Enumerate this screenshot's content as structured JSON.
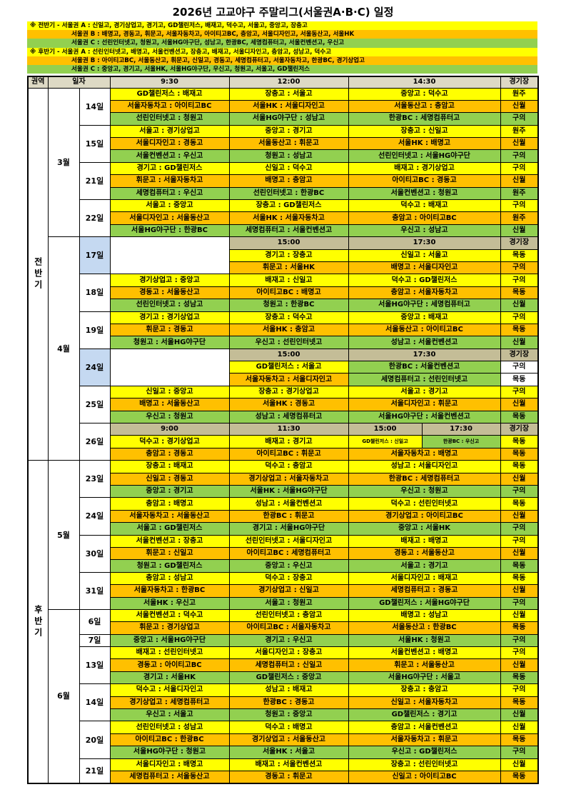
{
  "title": "2026년 고교야구 주말리그(서울권A·B·C) 일정",
  "notes": [
    {
      "text": "※ 전반기 - 서울권 A : 신일고, 경기상업고, 경기고, GD챌린저스, 배재고, 덕수고, 서울고, 중앙고, 장충고",
      "color": "#ffff00"
    },
    {
      "text": "서울권 B : 배명고, 경동고, 휘문고, 서울자동차고, 아이티고BC, 충암고, 서울디자인고, 서울동산고, 서울HK",
      "color": "#ffc000"
    },
    {
      "text": "서울권 C : 선린인터넷고, 청원고, 서울HG야구단, 성남고, 한광BC, 세명컴퓨터고, 서울컨벤션고, 우신고",
      "color": "#92d050"
    },
    {
      "text": "※ 후반기 - 서울권 A : 선린인터넷고, 배명고, 서울컨벤션고, 장충고, 배재고, 서울디자인고, 충암고, 성남고, 덕수고",
      "color": "#ffff00"
    },
    {
      "text": "서울권 B : 아이티고BC, 서울동산고, 휘문고, 신일고, 경동고, 세명컴퓨터고, 서울자동차고, 한광BC, 경기상업고",
      "color": "#ffc000"
    },
    {
      "text": "서울권 C : 중앙고, 경기고, 서울HK, 서울HG야구단, 우신고, 청원고, 서울고, GD챌린저스",
      "color": "#92d050"
    }
  ],
  "table": {
    "header": [
      "권역",
      "일자",
      "9:30",
      "12:00",
      "14:30",
      "경기장"
    ],
    "halves": [
      {
        "label": "전반기",
        "months": [
          {
            "label": "3월",
            "days": [
              {
                "label": "14일",
                "rows": [
                  {
                    "color": "#ffff00",
                    "games": [
                      "GD챌린저스 : 배재고",
                      "장충고 : 서울고",
                      "중앙고 : 덕수고"
                    ],
                    "venue": "원주"
                  },
                  {
                    "color": "#ffc000",
                    "games": [
                      "서울자동차고 : 아이티고BC",
                      "서울HK : 서울디자인고",
                      "서울동산고 : 충암고"
                    ],
                    "venue": "신월"
                  },
                  {
                    "color": "#92d050",
                    "games": [
                      "선린인터넷고 : 청원고",
                      "서울HG야구단 : 성남고",
                      "한광BC : 세명컴퓨터고"
                    ],
                    "venue": "구의"
                  }
                ]
              },
              {
                "label": "15일",
                "rows": [
                  {
                    "color": "#ffff00",
                    "games": [
                      "서울고 : 경기상업고",
                      "중앙고 : 경기고",
                      "장충고 : 신일고"
                    ],
                    "venue": "원주"
                  },
                  {
                    "color": "#ffc000",
                    "games": [
                      "서울디자인고 : 경동고",
                      "서울동산고 : 휘문고",
                      "서울HK : 배명고"
                    ],
                    "venue": "신월"
                  },
                  {
                    "color": "#92d050",
                    "games": [
                      "서울컨벤션고 : 우신고",
                      "청원고 : 성남고",
                      "선린인터넷고 : 서울HG야구단"
                    ],
                    "venue": "구의"
                  }
                ]
              },
              {
                "label": "21일",
                "rows": [
                  {
                    "color": "#ffff00",
                    "games": [
                      "경기고 : GD챌린저스",
                      "신일고 : 덕수고",
                      "배재고 : 경기상업고"
                    ],
                    "venue": "구의"
                  },
                  {
                    "color": "#ffc000",
                    "games": [
                      "휘문고 : 서울자동차고",
                      "배명고 : 충암고",
                      "아이티고BC : 경동고"
                    ],
                    "venue": "신월"
                  },
                  {
                    "color": "#92d050",
                    "games": [
                      "세명컴퓨터고 : 우신고",
                      "선린인터넷고 : 한광BC",
                      "서울컨벤션고 : 청원고"
                    ],
                    "venue": "원주"
                  }
                ]
              },
              {
                "label": "22일",
                "rows": [
                  {
                    "color": "#ffff00",
                    "games": [
                      "서울고 : 중앙고",
                      "장충고 : GD챌린저스",
                      "덕수고 : 배재고"
                    ],
                    "venue": "구의"
                  },
                  {
                    "color": "#ffc000",
                    "games": [
                      "서울디자인고 : 서울동산고",
                      "서울HK : 서울자동차고",
                      "충암고 : 아이티고BC"
                    ],
                    "venue": "원주"
                  },
                  {
                    "color": "#92d050",
                    "games": [
                      "서울HG야구단 : 한광BC",
                      "세명컴퓨터고 : 서울컨벤션고",
                      "우신고 : 성남고"
                    ],
                    "venue": "신월"
                  }
                ]
              }
            ]
          },
          {
            "label": "4월",
            "days": [
              {
                "label": "17일",
                "day_color": "#c5d9f1",
                "subheader": [
                  "15:00",
                  "17:30",
                  "경기장"
                ],
                "rows": [
                  {
                    "color": "#ffff00",
                    "games": [
                      "경기고 : 장충고",
                      "신일고 : 서울고"
                    ],
                    "venue": "목동"
                  },
                  {
                    "color": "#ffc000",
                    "games": [
                      "휘문고 : 서울HK",
                      "배명고 : 서울디자인고"
                    ],
                    "venue": "구의"
                  }
                ]
              },
              {
                "label": "18일",
                "rows": [
                  {
                    "color": "#ffff00",
                    "games": [
                      "경기상업고 : 중앙고",
                      "배재고 : 신일고",
                      "덕수고 : GD챌린저스"
                    ],
                    "venue": "구의"
                  },
                  {
                    "color": "#ffc000",
                    "games": [
                      "경동고 : 서울동산고",
                      "아이티고BC : 배명고",
                      "충암고 : 서울자동차고"
                    ],
                    "venue": "목동"
                  },
                  {
                    "color": "#92d050",
                    "games": [
                      "선린인터넷고 : 성남고",
                      "청원고 : 한광BC",
                      "서울HG야구단 : 세명컴퓨터고"
                    ],
                    "venue": "신월"
                  }
                ]
              },
              {
                "label": "19일",
                "rows": [
                  {
                    "color": "#ffff00",
                    "games": [
                      "경기고 : 경기상업고",
                      "장충고 : 덕수고",
                      "중앙고 : 배재고"
                    ],
                    "venue": "구의"
                  },
                  {
                    "color": "#ffc000",
                    "games": [
                      "휘문고 : 경동고",
                      "서울HK : 충암고",
                      "서울동산고 : 아이티고BC"
                    ],
                    "venue": "목동"
                  },
                  {
                    "color": "#92d050",
                    "games": [
                      "청원고 : 서울HG야구단",
                      "우신고 : 선린인터넷고",
                      "성남고 : 서울컨벤션고"
                    ],
                    "venue": "신월"
                  }
                ]
              },
              {
                "label": "24일",
                "day_color": "#c5d9f1",
                "subheader": [
                  "15:00",
                  "17:30",
                  "경기장"
                ],
                "rows": [
                  {
                    "color": "#ffffff",
                    "games": [
                      {
                        "text": "GD챌린저스 : 서울고",
                        "color": "#ffff00"
                      },
                      {
                        "text": "한광BC : 서울컨벤션고",
                        "color": "#92d050"
                      }
                    ],
                    "venue": "구의"
                  },
                  {
                    "color": "#ffffff",
                    "games": [
                      {
                        "text": "서울자동차고 : 서울디자인고",
                        "color": "#ffc000"
                      },
                      {
                        "text": "세명컴퓨터고 : 선린인터넷고",
                        "color": "#92d050"
                      }
                    ],
                    "venue": "목동"
                  }
                ]
              },
              {
                "label": "25일",
                "rows": [
                  {
                    "color": "#ffff00",
                    "games": [
                      "신일고 : 중앙고",
                      "장충고 : 경기상업고",
                      "서울고 : 경기고"
                    ],
                    "venue": "구의"
                  },
                  {
                    "color": "#ffc000",
                    "games": [
                      "배명고 : 서울동산고",
                      "서울HK : 경동고",
                      "서울디자인고 : 휘문고"
                    ],
                    "venue": "신월"
                  },
                  {
                    "color": "#92d050",
                    "games": [
                      "우신고 : 청원고",
                      "성남고 : 세명컴퓨터고",
                      "서울HG야구단 : 서울컨벤션고"
                    ],
                    "venue": "목동"
                  }
                ]
              },
              {
                "label": "26일",
                "subheader": [
                  "9:00",
                  "11:30",
                  "15:00",
                  "17:30",
                  "경기장"
                ],
                "rows": [
                  {
                    "color": "#ffff00",
                    "games": [
                      "덕수고 : 경기상업고",
                      "배재고 : 경기고",
                      "GD챌린저스 : 신일고",
                      {
                        "text": "한광BC : 우신고",
                        "color": "#92d050"
                      }
                    ],
                    "venue": "목동"
                  },
                  {
                    "color": "#ffc000",
                    "games": [
                      "충암고 : 경동고",
                      "아이티고BC : 휘문고",
                      "서울자동차고 : 배명고"
                    ],
                    "venue": "목동"
                  }
                ]
              }
            ]
          }
        ]
      },
      {
        "label": "후반기",
        "months": [
          {
            "label": "5월",
            "days": [
              {
                "label": "23일",
                "rows": [
                  {
                    "color": "#ffff00",
                    "games": [
                      "장충고 : 배재고",
                      "덕수고 : 충암고",
                      "성남고 : 서울디자인고"
                    ],
                    "venue": "목동"
                  },
                  {
                    "color": "#ffc000",
                    "games": [
                      "신일고 : 경동고",
                      "경기상업고 : 서울자동차고",
                      "한광BC : 세명컴퓨터고"
                    ],
                    "venue": "신월"
                  },
                  {
                    "color": "#92d050",
                    "games": [
                      "중앙고 : 경기고",
                      "서울HK : 서울HG야구단",
                      "우신고 : 청원고"
                    ],
                    "venue": "구의"
                  }
                ]
              },
              {
                "label": "24일",
                "rows": [
                  {
                    "color": "#ffff00",
                    "games": [
                      "충암고 : 배명고",
                      "성남고 : 서울컨벤션고",
                      "덕수고 : 선린인터넷고"
                    ],
                    "venue": "목동"
                  },
                  {
                    "color": "#ffc000",
                    "games": [
                      "서울자동차고 : 서울동산고",
                      "한광BC : 휘문고",
                      "경기상업고 : 아이티고BC"
                    ],
                    "venue": "신월"
                  },
                  {
                    "color": "#92d050",
                    "games": [
                      "서울고 : GD챌린저스",
                      "경기고 : 서울HG야구단",
                      "중앙고 : 서울HK"
                    ],
                    "venue": "구의"
                  }
                ]
              },
              {
                "label": "30일",
                "rows": [
                  {
                    "color": "#ffff00",
                    "games": [
                      "서울컨벤션고 : 장충고",
                      "선린인터넷고 : 서울디자인고",
                      "배재고 : 배명고"
                    ],
                    "venue": "구의"
                  },
                  {
                    "color": "#ffc000",
                    "games": [
                      "휘문고 : 신일고",
                      "아이티고BC : 세명컴퓨터고",
                      "경동고 : 서울동산고"
                    ],
                    "venue": "신월"
                  },
                  {
                    "color": "#92d050",
                    "games": [
                      "청원고 : GD챌린저스",
                      "중앙고 : 우신고",
                      "서울고 : 경기고"
                    ],
                    "venue": "목동"
                  }
                ]
              },
              {
                "label": "31일",
                "rows": [
                  {
                    "color": "#ffff00",
                    "games": [
                      "충암고 : 성남고",
                      "덕수고 : 장충고",
                      "서울디자인고 : 배재고"
                    ],
                    "venue": "목동"
                  },
                  {
                    "color": "#ffc000",
                    "games": [
                      "서울자동차고 : 한광BC",
                      "경기상업고 : 신일고",
                      "세명컴퓨터고 : 경동고"
                    ],
                    "venue": "신월"
                  },
                  {
                    "color": "#92d050",
                    "games": [
                      "서울HK : 우신고",
                      "서울고 : 청원고",
                      "GD챌린저스 : 서울HG야구단"
                    ],
                    "venue": "구의"
                  }
                ]
              }
            ]
          },
          {
            "label": "6월",
            "days": [
              {
                "label": "6일",
                "rows": [
                  {
                    "color": "#ffff00",
                    "games": [
                      "서울컨벤션고 : 덕수고",
                      "선린인터넷고 : 충암고",
                      "배명고 : 성남고"
                    ],
                    "venue": "신월"
                  },
                  {
                    "color": "#ffc000",
                    "games": [
                      "휘문고 : 경기상업고",
                      "아이티고BC : 서울자동차고",
                      "서울동산고 : 한광BC"
                    ],
                    "venue": "목동"
                  }
                ]
              },
              {
                "label": "7일",
                "rows": [
                  {
                    "color": "#92d050",
                    "games": [
                      "중앙고 : 서울HG야구단",
                      "경기고 : 우신고",
                      "서울HK : 청원고"
                    ],
                    "venue": "구의"
                  }
                ]
              },
              {
                "label": "13일",
                "rows": [
                  {
                    "color": "#ffff00",
                    "games": [
                      "배재고 : 선린인터넷고",
                      "서울디자인고 : 장충고",
                      "서울컨벤션고 : 배명고"
                    ],
                    "venue": "구의"
                  },
                  {
                    "color": "#ffc000",
                    "games": [
                      "경동고 : 아이티고BC",
                      "세명컴퓨터고 : 신일고",
                      "휘문고 : 서울동산고"
                    ],
                    "venue": "신월"
                  },
                  {
                    "color": "#92d050",
                    "games": [
                      "경기고 : 서울HK",
                      "GD챌린저스 : 중앙고",
                      "서울HG야구단 : 서울고"
                    ],
                    "venue": "목동"
                  }
                ]
              },
              {
                "label": "14일",
                "rows": [
                  {
                    "color": "#ffff00",
                    "games": [
                      "덕수고 : 서울디자인고",
                      "성남고 : 배재고",
                      "장충고 : 충암고"
                    ],
                    "venue": "구의"
                  },
                  {
                    "color": "#ffc000",
                    "games": [
                      "경기상업고 : 세명컴퓨터고",
                      "한광BC : 경동고",
                      "신일고 : 서울자동차고"
                    ],
                    "venue": "목동"
                  },
                  {
                    "color": "#92d050",
                    "games": [
                      "우신고 : 서울고",
                      "청원고 : 중앙고",
                      "GD챌린저스 : 경기고"
                    ],
                    "venue": "신월"
                  }
                ]
              },
              {
                "label": "20일",
                "rows": [
                  {
                    "color": "#ffff00",
                    "games": [
                      "선린인터넷고 : 성남고",
                      "덕수고 : 배명고",
                      "충암고 : 서울컨벤션고"
                    ],
                    "venue": "신월"
                  },
                  {
                    "color": "#ffc000",
                    "games": [
                      "아이티고BC : 한광BC",
                      "경기상업고 : 서울동산고",
                      "서울자동차고 : 휘문고"
                    ],
                    "venue": "목동"
                  },
                  {
                    "color": "#92d050",
                    "games": [
                      "서울HG야구단 : 청원고",
                      "서울HK : 서울고",
                      "우신고 : GD챌린저스"
                    ],
                    "venue": "구의"
                  }
                ]
              },
              {
                "label": "21일",
                "rows": [
                  {
                    "color": "#ffff00",
                    "games": [
                      "서울디자인고 : 배명고",
                      "배재고 : 서울컨벤션고",
                      "장충고 : 선린인터넷고"
                    ],
                    "venue": "신월"
                  },
                  {
                    "color": "#ffc000",
                    "games": [
                      "세명컴퓨터고 : 서울동산고",
                      "경동고 : 휘문고",
                      "신일고 : 아이티고BC"
                    ],
                    "venue": "목동"
                  }
                ]
              }
            ]
          }
        ]
      }
    ]
  }
}
